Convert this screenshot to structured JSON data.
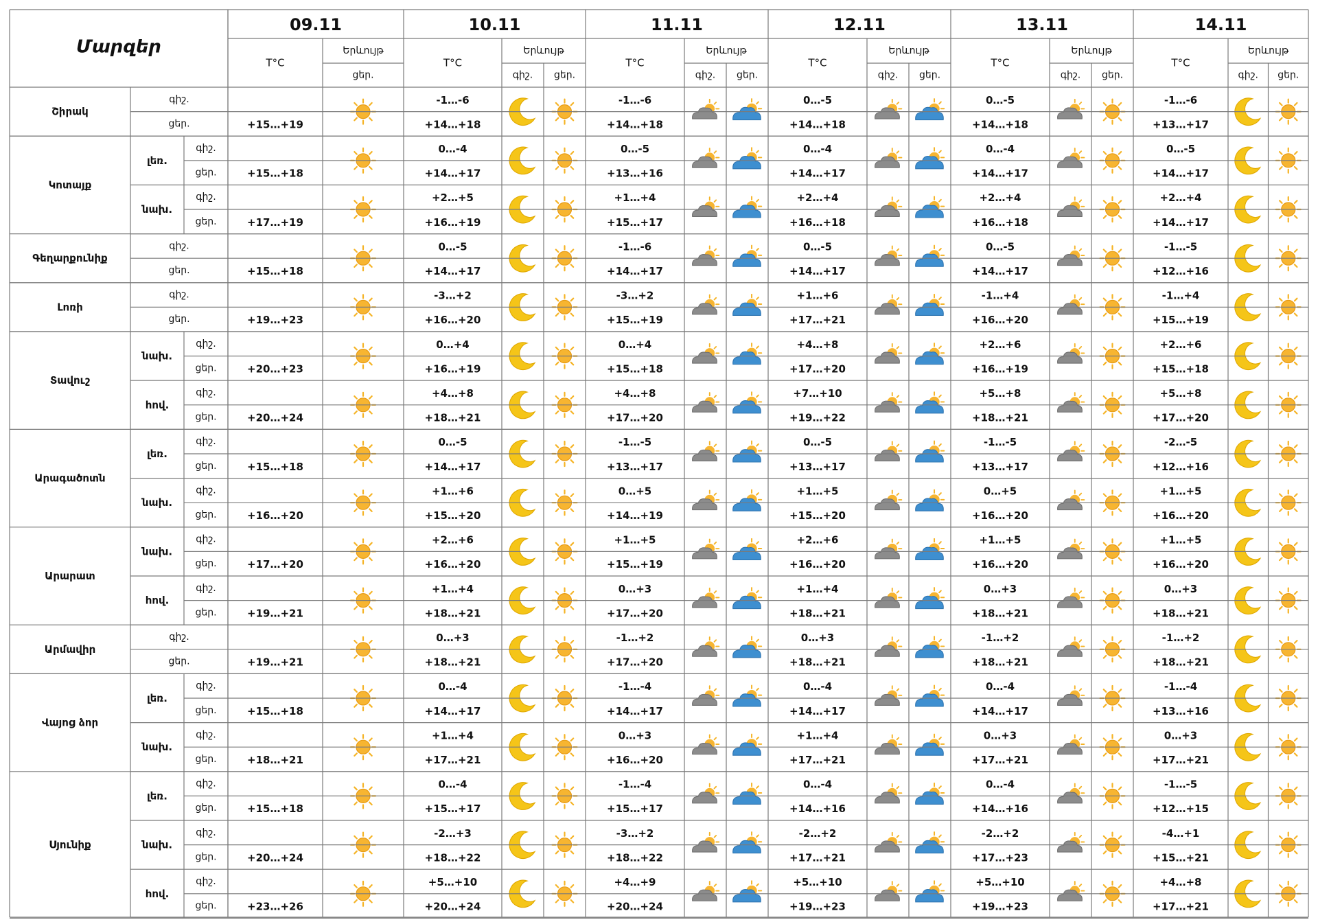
{
  "header": {
    "regions_title": "Մարզեր",
    "temp_label": "T°C",
    "phenomenon_label": "Երևույթ",
    "night_label": "գիշ.",
    "day_label": "ցեր."
  },
  "dates": [
    "09.11",
    "10.11",
    "11.11",
    "12.11",
    "13.11",
    "14.11"
  ],
  "icons": {
    "day1": "sun-icon",
    "moon": "moon-icon",
    "sun": "sun-icon",
    "night_cloud": "gray-cloud-sun-icon",
    "day_cloud": "blue-cloud-sun-icon"
  },
  "colors": {
    "sun": "#F5B324",
    "moon": "#F5C518",
    "cloud_gray": "#8C8C8C",
    "cloud_blue": "#3E8FD0",
    "grid": "#7A7A7A"
  },
  "regions": [
    {
      "name": "Շիրակ",
      "subs": [
        {
          "label": "",
          "night": [
            "",
            "-1…-6",
            "-1…-6",
            "0…-5",
            "0…-5",
            "-1…-6"
          ],
          "day": [
            "+15…+19",
            "+14…+18",
            "+14…+18",
            "+14…+18",
            "+14…+18",
            "+13…+17"
          ]
        }
      ]
    },
    {
      "name": "Կոտայք",
      "subs": [
        {
          "label": "լեռ.",
          "night": [
            "",
            "0…-4",
            "0…-5",
            "0…-4",
            "0…-4",
            "0…-5"
          ],
          "day": [
            "+15…+18",
            "+14…+17",
            "+13…+16",
            "+14…+17",
            "+14…+17",
            "+14…+17"
          ]
        },
        {
          "label": "նախ.",
          "night": [
            "",
            "+2…+5",
            "+1…+4",
            "+2…+4",
            "+2…+4",
            "+2…+4"
          ],
          "day": [
            "+17…+19",
            "+16…+19",
            "+15…+17",
            "+16…+18",
            "+16…+18",
            "+14…+17"
          ]
        }
      ]
    },
    {
      "name": "Գեղարքունիք",
      "subs": [
        {
          "label": "",
          "night": [
            "",
            "0…-5",
            "-1…-6",
            "0…-5",
            "0…-5",
            "-1…-5"
          ],
          "day": [
            "+15…+18",
            "+14…+17",
            "+14…+17",
            "+14…+17",
            "+14…+17",
            "+12…+16"
          ]
        }
      ]
    },
    {
      "name": "Լոռի",
      "subs": [
        {
          "label": "",
          "night": [
            "",
            "-3…+2",
            "-3…+2",
            "+1…+6",
            "-1…+4",
            "-1…+4"
          ],
          "day": [
            "+19…+23",
            "+16…+20",
            "+15…+19",
            "+17…+21",
            "+16…+20",
            "+15…+19"
          ]
        }
      ]
    },
    {
      "name": "Տավուշ",
      "subs": [
        {
          "label": "նախ.",
          "night": [
            "",
            "0…+4",
            "0…+4",
            "+4…+8",
            "+2…+6",
            "+2…+6"
          ],
          "day": [
            "+20…+23",
            "+16…+19",
            "+15…+18",
            "+17…+20",
            "+16…+19",
            "+15…+18"
          ]
        },
        {
          "label": "հով.",
          "night": [
            "",
            "+4…+8",
            "+4…+8",
            "+7…+10",
            "+5…+8",
            "+5…+8"
          ],
          "day": [
            "+20…+24",
            "+18…+21",
            "+17…+20",
            "+19…+22",
            "+18…+21",
            "+17…+20"
          ]
        }
      ]
    },
    {
      "name": "Արագածոտն",
      "subs": [
        {
          "label": "լեռ.",
          "night": [
            "",
            "0…-5",
            "-1…-5",
            "0…-5",
            "-1…-5",
            "-2…-5"
          ],
          "day": [
            "+15…+18",
            "+14…+17",
            "+13…+17",
            "+13…+17",
            "+13…+17",
            "+12…+16"
          ]
        },
        {
          "label": "նախ.",
          "night": [
            "",
            "+1…+6",
            "0…+5",
            "+1…+5",
            "0…+5",
            "+1…+5"
          ],
          "day": [
            "+16…+20",
            "+15…+20",
            "+14…+19",
            "+15…+20",
            "+16…+20",
            "+16…+20"
          ]
        }
      ]
    },
    {
      "name": "Արարատ",
      "subs": [
        {
          "label": "նախ.",
          "night": [
            "",
            "+2…+6",
            "+1…+5",
            "+2…+6",
            "+1…+5",
            "+1…+5"
          ],
          "day": [
            "+17…+20",
            "+16…+20",
            "+15…+19",
            "+16…+20",
            "+16…+20",
            "+16…+20"
          ]
        },
        {
          "label": "հով.",
          "night": [
            "",
            "+1…+4",
            "0…+3",
            "+1…+4",
            "0…+3",
            "0…+3"
          ],
          "day": [
            "+19…+21",
            "+18…+21",
            "+17…+20",
            "+18…+21",
            "+18…+21",
            "+18…+21"
          ]
        }
      ]
    },
    {
      "name": "Արմավիր",
      "subs": [
        {
          "label": "",
          "night": [
            "",
            "0…+3",
            "-1…+2",
            "0…+3",
            "-1…+2",
            "-1…+2"
          ],
          "day": [
            "+19…+21",
            "+18…+21",
            "+17…+20",
            "+18…+21",
            "+18…+21",
            "+18…+21"
          ]
        }
      ]
    },
    {
      "name": "Վայոց ձոր",
      "subs": [
        {
          "label": "լեռ.",
          "night": [
            "",
            "0…-4",
            "-1…-4",
            "0…-4",
            "0…-4",
            "-1…-4"
          ],
          "day": [
            "+15…+18",
            "+14…+17",
            "+14…+17",
            "+14…+17",
            "+14…+17",
            "+13…+16"
          ]
        },
        {
          "label": "նախ.",
          "night": [
            "",
            "+1…+4",
            "0…+3",
            "+1…+4",
            "0…+3",
            "0…+3"
          ],
          "day": [
            "+18…+21",
            "+17…+21",
            "+16…+20",
            "+17…+21",
            "+17…+21",
            "+17…+21"
          ]
        }
      ]
    },
    {
      "name": "Սյունիք",
      "subs": [
        {
          "label": "լեռ.",
          "night": [
            "",
            "0…-4",
            "-1…-4",
            "0…-4",
            "0…-4",
            "-1…-5"
          ],
          "day": [
            "+15…+18",
            "+15…+17",
            "+15…+17",
            "+14…+16",
            "+14…+16",
            "+12…+15"
          ]
        },
        {
          "label": "նախ.",
          "night": [
            "",
            "-2…+3",
            "-3…+2",
            "-2…+2",
            "-2…+2",
            "-4…+1"
          ],
          "day": [
            "+20…+24",
            "+18…+22",
            "+18…+22",
            "+17…+21",
            "+17…+23",
            "+15…+21"
          ]
        },
        {
          "label": "հով.",
          "night": [
            "",
            "+5…+10",
            "+4…+9",
            "+5…+10",
            "+5…+10",
            "+4…+8"
          ],
          "day": [
            "+23…+26",
            "+20…+24",
            "+20…+24",
            "+19…+23",
            "+19…+23",
            "+17…+21"
          ]
        }
      ]
    }
  ]
}
